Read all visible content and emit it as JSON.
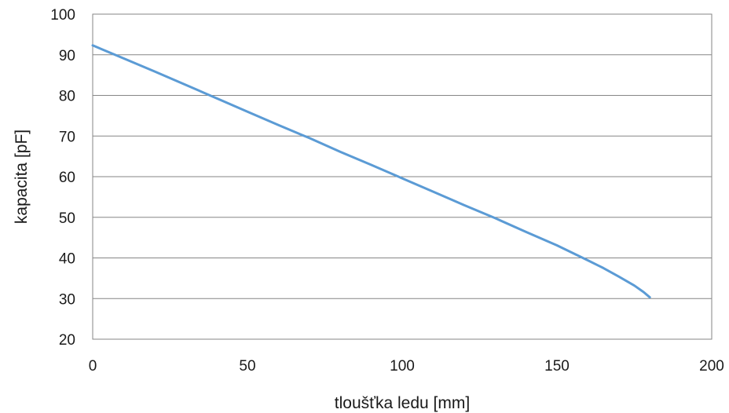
{
  "chart_data": {
    "type": "line",
    "title": "",
    "xlabel": "tloušťka ledu [mm]",
    "ylabel": "kapacita [pF]",
    "xlim": [
      0,
      200
    ],
    "ylim": [
      20,
      100
    ],
    "x_ticks": [
      0,
      50,
      100,
      150,
      200
    ],
    "y_ticks": [
      20,
      30,
      40,
      50,
      60,
      70,
      80,
      90,
      100
    ],
    "grid": "horizontal",
    "legend": "none",
    "series": [
      {
        "color": "#5b9bd5",
        "x": [
          0,
          10,
          20,
          30,
          40,
          50,
          60,
          70,
          80,
          90,
          100,
          110,
          120,
          130,
          140,
          150,
          160,
          165,
          170,
          175,
          178,
          180
        ],
        "y": [
          92.3,
          89.1,
          85.9,
          82.6,
          79.3,
          76.0,
          72.7,
          69.5,
          66.1,
          62.9,
          59.6,
          56.3,
          53.0,
          49.8,
          46.4,
          43.1,
          39.4,
          37.5,
          35.4,
          33.2,
          31.6,
          30.3
        ]
      }
    ]
  }
}
